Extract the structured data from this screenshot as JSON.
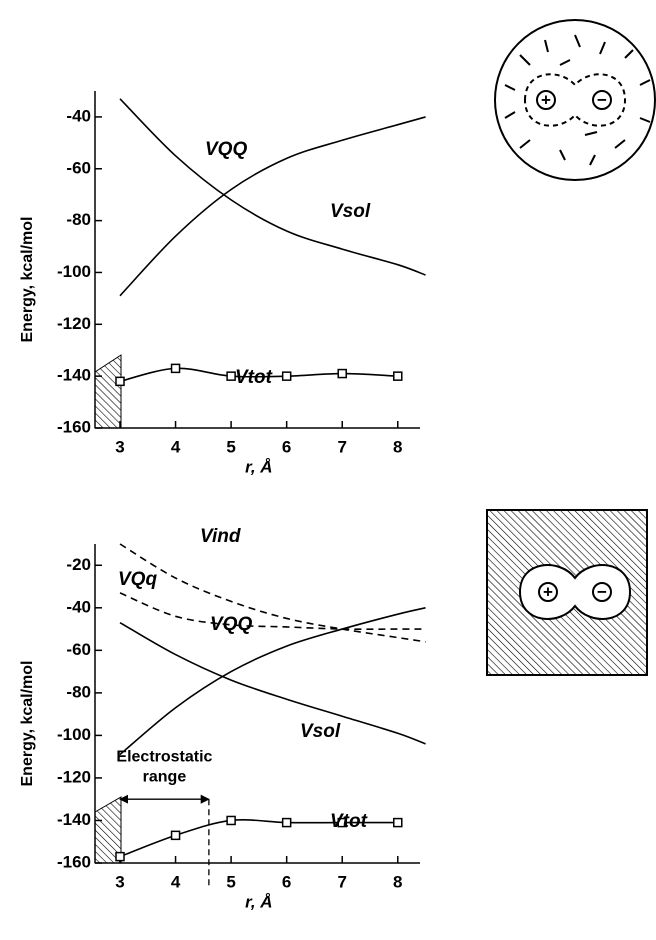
{
  "chart_data": [
    {
      "type": "line",
      "y_label": "Energy, kcal/mol",
      "x_label": "r, Å",
      "xlim": [
        2.55,
        8.4
      ],
      "xticks": [
        3,
        4,
        5,
        6,
        7,
        8
      ],
      "ylim": [
        -160,
        -30
      ],
      "yticks": [
        -40,
        -60,
        -80,
        -100,
        -120,
        -140,
        -160
      ],
      "series": [
        {
          "name": "VQQ",
          "color": "#000000",
          "x": [
            3,
            4,
            5,
            6,
            7,
            8,
            8.5
          ],
          "values": [
            -109,
            -86,
            -68,
            -56,
            -49,
            -43,
            -40
          ]
        },
        {
          "name": "Vsol",
          "color": "#000000",
          "x": [
            3,
            4,
            5,
            6,
            7,
            8,
            8.5
          ],
          "values": [
            -33,
            -55,
            -72,
            -84,
            -91,
            -97,
            -101
          ]
        },
        {
          "name": "Vtot",
          "color": "#000000",
          "markers": true,
          "x": [
            3,
            4,
            5,
            6,
            7,
            8
          ],
          "values": [
            -142,
            -137,
            -140,
            -140,
            -139,
            -140
          ]
        }
      ]
    },
    {
      "type": "line",
      "y_label": "Energy, kcal/mol",
      "x_label": "r, Å",
      "xlim": [
        2.55,
        8.4
      ],
      "xticks": [
        3,
        4,
        5,
        6,
        7,
        8
      ],
      "ylim": [
        -160,
        -10
      ],
      "yticks": [
        -20,
        -40,
        -60,
        -80,
        -100,
        -120,
        -140,
        -160
      ],
      "series": [
        {
          "name": "Vind",
          "color": "#000000",
          "dashed": true,
          "x": [
            3,
            4,
            5,
            6,
            7,
            8,
            8.5
          ],
          "values": [
            -10,
            -26,
            -37,
            -45,
            -50,
            -54,
            -56
          ]
        },
        {
          "name": "VQq",
          "color": "#000000",
          "dashed": true,
          "x": [
            3,
            4,
            5,
            6,
            7,
            8,
            8.5
          ],
          "values": [
            -33,
            -44,
            -48,
            -49,
            -50,
            -50,
            -50
          ]
        },
        {
          "name": "VQQ",
          "color": "#000000",
          "x": [
            3,
            4,
            5,
            6,
            7,
            8,
            8.5
          ],
          "values": [
            -109,
            -87,
            -70,
            -58,
            -50,
            -43,
            -40
          ]
        },
        {
          "name": "Vsol",
          "color": "#000000",
          "x": [
            3,
            4,
            5,
            6,
            7,
            8,
            8.5
          ],
          "values": [
            -47,
            -62,
            -74,
            -83,
            -91,
            -99,
            -104
          ]
        },
        {
          "name": "Vtot",
          "color": "#000000",
          "markers": true,
          "x": [
            3,
            4,
            5,
            6,
            7,
            8
          ],
          "values": [
            -157,
            -147,
            -140,
            -141,
            -141,
            -141
          ]
        }
      ],
      "annotation": {
        "text": [
          "Electrostatic",
          "range"
        ],
        "x": [
          3,
          4.6
        ],
        "y": -130
      }
    }
  ],
  "diagrams": {
    "charges": [
      "+",
      "−"
    ]
  }
}
